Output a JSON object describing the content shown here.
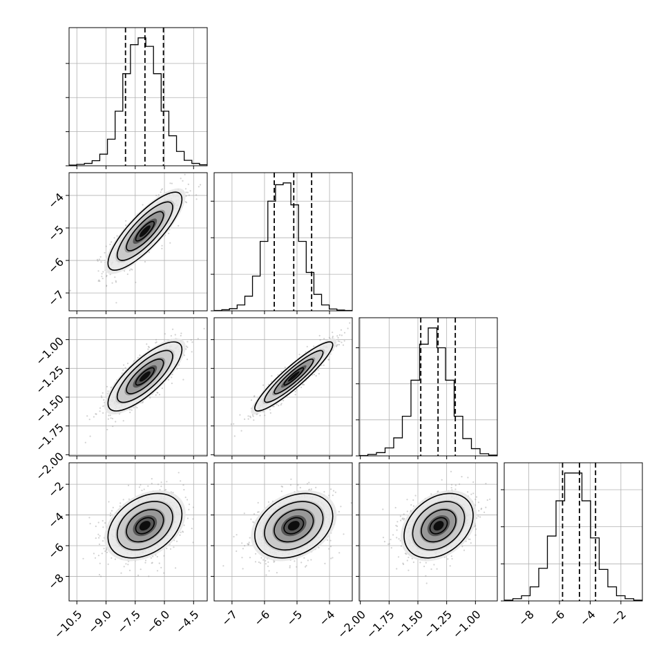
{
  "chart_data": {
    "type": "corner",
    "grid": true,
    "parameters": [
      {
        "range": [
          -10.9,
          -3.8
        ],
        "ticks": [
          -10.5,
          -9.0,
          -7.5,
          -6.0,
          -4.5
        ],
        "tick_labels": [
          "−10.5",
          "−9.0",
          "−7.5",
          "−6.0",
          "−4.5"
        ],
        "quantiles": [
          -8.0,
          -7.0,
          -6.05
        ],
        "hist": [
          2,
          4,
          7,
          15,
          34,
          78,
          160,
          270,
          355,
          375,
          350,
          270,
          160,
          88,
          42,
          16,
          7,
          3
        ],
        "samples_mean": -7.0,
        "samples_sigma": 0.95,
        "hist_ticks": [
          0,
          100,
          200,
          300
        ]
      },
      {
        "range": [
          -7.55,
          -3.3
        ],
        "ticks": [
          -7,
          -6,
          -5,
          -4
        ],
        "tick_labels": [
          "−7",
          "−6",
          "−5",
          "−4"
        ],
        "quantiles": [
          -5.7,
          -5.1,
          -4.55
        ],
        "hist": [
          1,
          3,
          6,
          16,
          40,
          95,
          190,
          300,
          345,
          350,
          290,
          190,
          105,
          45,
          16,
          5,
          2,
          1
        ],
        "samples_mean": -5.1,
        "samples_sigma": 0.6,
        "hist_ticks": [
          0,
          100,
          200,
          300
        ]
      },
      {
        "range": [
          -2.01,
          -0.81
        ],
        "ticks": [
          -2.0,
          -1.75,
          -1.5,
          -1.25,
          -1.0
        ],
        "tick_labels": [
          "−2.00",
          "−1.75",
          "−1.50",
          "−1.25",
          "−1.00"
        ],
        "quantiles": [
          -1.475,
          -1.325,
          -1.175
        ],
        "hist": [
          1,
          4,
          9,
          22,
          50,
          110,
          210,
          310,
          355,
          300,
          210,
          110,
          48,
          20,
          6,
          2
        ],
        "samples_mean": -1.32,
        "samples_sigma": 0.15,
        "hist_ticks": [
          0,
          100,
          200,
          300
        ]
      },
      {
        "range": [
          -9.6,
          -0.6
        ],
        "ticks": [
          -8,
          -6,
          -4,
          -2
        ],
        "tick_labels": [
          "−8",
          "−6",
          "−4",
          "−2"
        ],
        "quantiles": [
          -5.8,
          -4.7,
          -3.65
        ],
        "hist": [
          2,
          6,
          14,
          38,
          88,
          175,
          270,
          345,
          345,
          270,
          170,
          85,
          38,
          14,
          6,
          2
        ],
        "samples_mean": -4.7,
        "samples_sigma": 1.05,
        "hist_ticks": [
          0,
          100,
          200,
          300
        ]
      }
    ],
    "correlations": [
      [
        1,
        0.82,
        0.78,
        0.35
      ],
      [
        0.82,
        1,
        0.92,
        0.3
      ],
      [
        0.78,
        0.92,
        1,
        0.32
      ],
      [
        0.35,
        0.3,
        0.32,
        1
      ]
    ],
    "contour_levels": [
      0.5,
      1.0,
      1.5,
      2.0
    ]
  }
}
